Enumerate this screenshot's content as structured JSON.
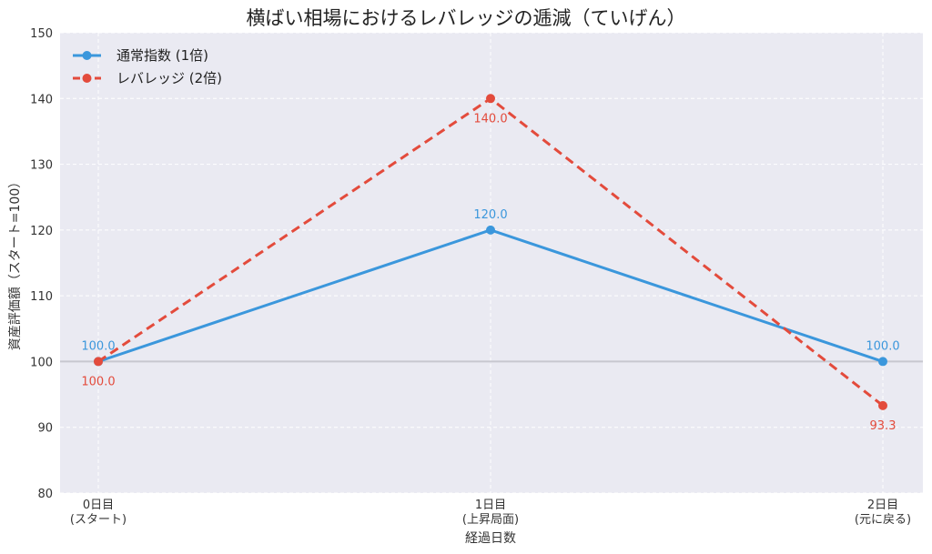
{
  "chart_data": {
    "type": "line",
    "title": "横ばい相場におけるレバレッジの逓減（ていげん）",
    "xlabel": "経過日数",
    "ylabel": "資産評価額（スタート=100）",
    "ylim": [
      80,
      150
    ],
    "yticks": [
      80,
      90,
      100,
      110,
      120,
      130,
      140,
      150
    ],
    "grid": true,
    "legend_position": "top-left",
    "reference_line": 100,
    "categories": [
      {
        "line1": "0日目",
        "line2": "(スタート)"
      },
      {
        "line1": "1日目",
        "line2": "(上昇局面)"
      },
      {
        "line1": "2日目",
        "line2": "(元に戻る)"
      }
    ],
    "series": [
      {
        "name": "通常指数 (1倍)",
        "values": [
          100.0,
          120.0,
          100.0
        ],
        "labels": [
          "100.0",
          "120.0",
          "100.0"
        ],
        "color": "#3b97dc",
        "style": "solid",
        "label_position": "above"
      },
      {
        "name": "レバレッジ (2倍)",
        "values": [
          100.0,
          140.0,
          93.3
        ],
        "labels": [
          "100.0",
          "140.0",
          "93.3"
        ],
        "color": "#e34b3c",
        "style": "dashed",
        "label_position": "below"
      }
    ]
  },
  "colors": {
    "plot_background": "#eaeaf2",
    "grid": "#ffffff",
    "reference_line": "#c7c7cf"
  }
}
